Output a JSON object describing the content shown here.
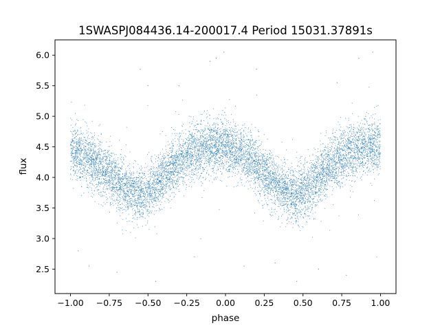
{
  "chart_data": {
    "type": "scatter",
    "title": "1SWASPJ084436.14-200017.4 Period 15031.37891s",
    "xlabel": "phase",
    "ylabel": "flux",
    "xlim": [
      -1.1,
      1.1
    ],
    "ylim": [
      2.1,
      6.25
    ],
    "xticks": [
      -1.0,
      -0.75,
      -0.5,
      -0.25,
      0.0,
      0.25,
      0.5,
      0.75,
      1.0
    ],
    "xtick_labels": [
      "−1.00",
      "−0.75",
      "−0.50",
      "−0.25",
      "0.00",
      "0.25",
      "0.50",
      "0.75",
      "1.00"
    ],
    "yticks": [
      2.5,
      3.0,
      3.5,
      4.0,
      4.5,
      5.0,
      5.5,
      6.0
    ],
    "ytick_labels": [
      "2.5",
      "3.0",
      "3.5",
      "4.0",
      "4.5",
      "5.0",
      "5.5",
      "6.0"
    ],
    "grid": false,
    "point_color": "#1f77b4",
    "model": {
      "description_of_shape": "phase-folded light curve, two cycles over phase -1..1",
      "phase": [
        -1.0,
        -0.9,
        -0.8,
        -0.7,
        -0.6,
        -0.55,
        -0.5,
        -0.4,
        -0.3,
        -0.2,
        -0.1,
        0.0,
        0.1,
        0.2,
        0.3,
        0.4,
        0.45,
        0.5,
        0.6,
        0.7,
        0.8,
        0.9,
        1.0
      ],
      "flux": [
        4.45,
        4.35,
        4.15,
        3.95,
        3.75,
        3.7,
        3.75,
        4.0,
        4.25,
        4.45,
        4.5,
        4.5,
        4.4,
        4.2,
        3.95,
        3.75,
        3.7,
        3.75,
        4.0,
        4.25,
        4.4,
        4.5,
        4.5
      ],
      "scatter_sigma": 0.22
    },
    "outliers": [
      {
        "x": -0.55,
        "y": 5.77
      },
      {
        "x": -0.5,
        "y": 5.5
      },
      {
        "x": -0.06,
        "y": 5.95
      },
      {
        "x": -0.1,
        "y": 5.9
      },
      {
        "x": -0.01,
        "y": 6.05
      },
      {
        "x": 0.2,
        "y": 5.77
      },
      {
        "x": 0.86,
        "y": 5.95
      },
      {
        "x": 0.95,
        "y": 6.05
      },
      {
        "x": 0.72,
        "y": 5.55
      },
      {
        "x": -0.3,
        "y": 5.5
      },
      {
        "x": -0.45,
        "y": 2.3
      },
      {
        "x": 0.46,
        "y": 2.3
      },
      {
        "x": -0.88,
        "y": 2.55
      },
      {
        "x": 0.6,
        "y": 2.5
      },
      {
        "x": 0.32,
        "y": 2.6
      },
      {
        "x": -0.2,
        "y": 2.7
      },
      {
        "x": 0.12,
        "y": 2.55
      },
      {
        "x": -0.7,
        "y": 2.45
      },
      {
        "x": 0.78,
        "y": 2.4
      },
      {
        "x": -0.95,
        "y": 2.8
      }
    ]
  }
}
